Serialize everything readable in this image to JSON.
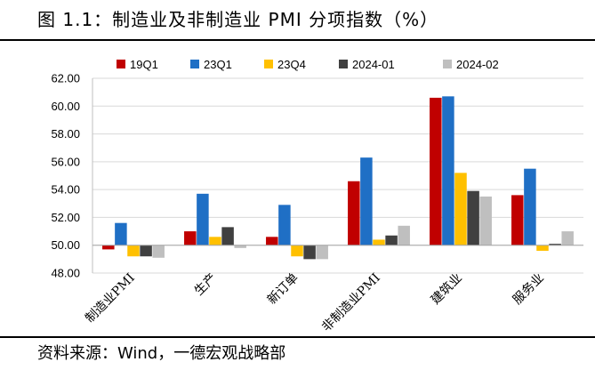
{
  "figure": {
    "title": "图 1.1：制造业及非制造业 PMI 分项指数（%）",
    "source": "资料来源：Wind，一德宏观战略部"
  },
  "chart_data": {
    "type": "bar",
    "title": "制造业及非制造业 PMI 分项指数（%）",
    "xlabel": "",
    "ylabel": "",
    "ylim": [
      48.0,
      62.0
    ],
    "baseline": 50.0,
    "yticks": [
      "48.00",
      "50.00",
      "52.00",
      "54.00",
      "56.00",
      "58.00",
      "60.00",
      "62.00"
    ],
    "categories": [
      "制造业PMI",
      "生产",
      "新订单",
      "非制造业PMI",
      "建筑业",
      "服务业"
    ],
    "legend_position": "top",
    "series": [
      {
        "name": "19Q1",
        "color": "#C00000",
        "values": [
          49.7,
          51.0,
          50.6,
          54.6,
          60.6,
          53.6
        ]
      },
      {
        "name": "23Q1",
        "color": "#1F6FC5",
        "values": [
          51.6,
          53.7,
          52.9,
          56.3,
          60.7,
          55.5
        ]
      },
      {
        "name": "23Q4",
        "color": "#FFC000",
        "values": [
          49.2,
          50.6,
          49.2,
          50.4,
          55.2,
          49.6
        ]
      },
      {
        "name": "2024-01",
        "color": "#404040",
        "values": [
          49.2,
          51.3,
          49.0,
          50.7,
          53.9,
          50.1
        ]
      },
      {
        "name": "2024-02",
        "color": "#BFBFBF",
        "values": [
          49.1,
          49.8,
          49.0,
          51.4,
          53.5,
          51.0
        ]
      }
    ]
  }
}
